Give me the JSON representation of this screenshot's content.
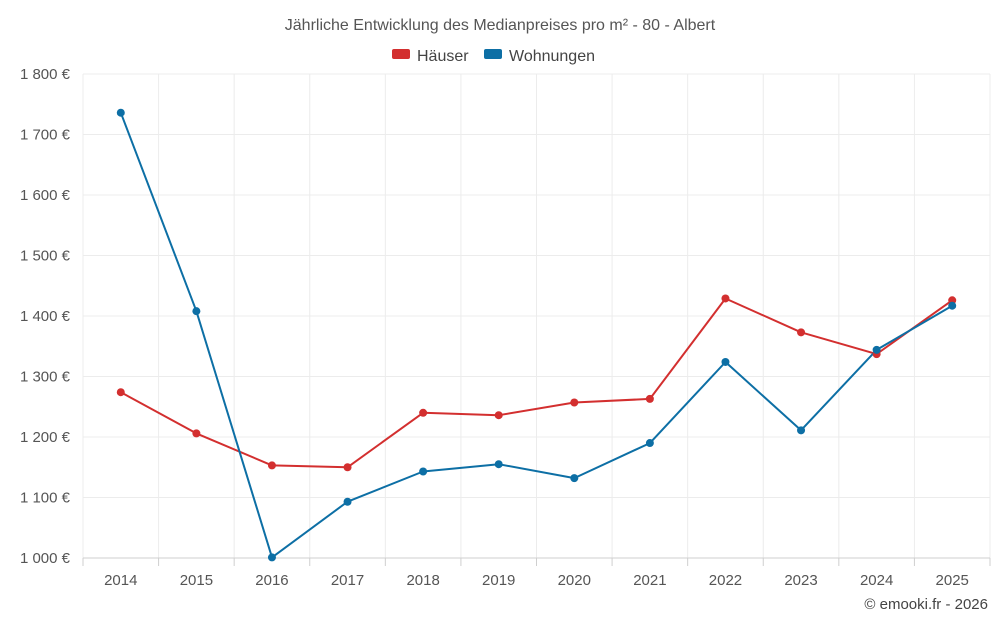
{
  "chart_data": {
    "type": "line",
    "title": "Jährliche Entwicklung des Medianpreises pro m² - 80 - Albert",
    "categories": [
      "2014",
      "2015",
      "2016",
      "2017",
      "2018",
      "2019",
      "2020",
      "2021",
      "2022",
      "2023",
      "2024",
      "2025"
    ],
    "series": [
      {
        "name": "Häuser",
        "color": "#d32f2f",
        "values": [
          1274,
          1206,
          1153,
          1150,
          1240,
          1236,
          1257,
          1263,
          1429,
          1373,
          1337,
          1426
        ]
      },
      {
        "name": "Wohnungen",
        "color": "#0d6fa5",
        "values": [
          1736,
          1408,
          1001,
          1093,
          1143,
          1155,
          1132,
          1190,
          1324,
          1211,
          1344,
          1417
        ]
      }
    ],
    "ylim": [
      1000,
      1800
    ],
    "yticks": [
      "1 000 €",
      "1 100 €",
      "1 200 €",
      "1 300 €",
      "1 400 €",
      "1 500 €",
      "1 600 €",
      "1 700 €",
      "1 800 €"
    ],
    "ytick_values": [
      1000,
      1100,
      1200,
      1300,
      1400,
      1500,
      1600,
      1700,
      1800
    ],
    "grid": true,
    "legend_position": "top-center",
    "credit": "© emooki.fr - 2026"
  }
}
